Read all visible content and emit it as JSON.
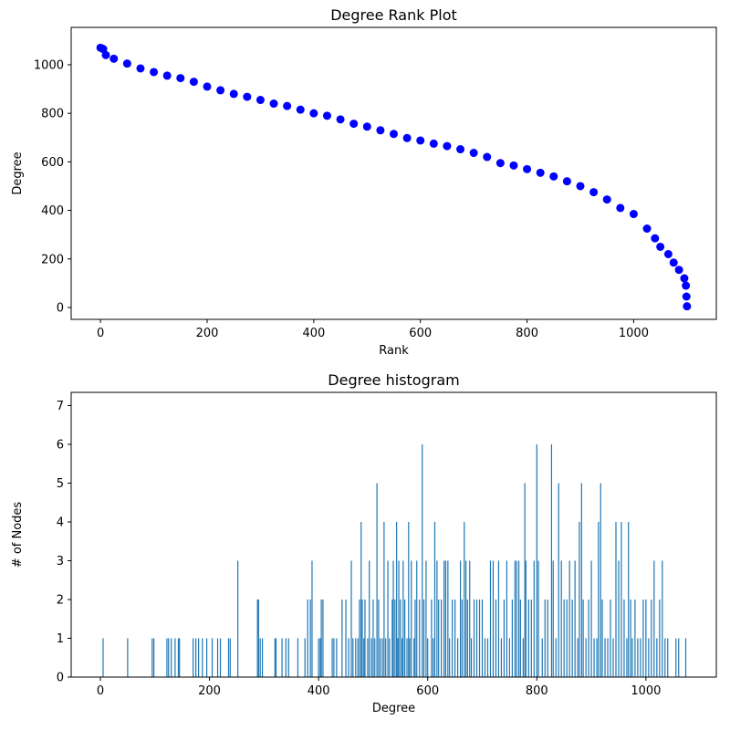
{
  "chart_data": [
    {
      "type": "scatter",
      "title": "Degree Rank Plot",
      "x_label": "Rank",
      "y_label": "Degree",
      "color": "#0000ff",
      "x": [
        0,
        5,
        10,
        25,
        50,
        75,
        100,
        125,
        150,
        175,
        200,
        225,
        250,
        275,
        300,
        325,
        350,
        375,
        400,
        425,
        450,
        475,
        500,
        525,
        550,
        575,
        600,
        625,
        650,
        675,
        700,
        725,
        750,
        775,
        800,
        825,
        850,
        875,
        900,
        925,
        950,
        975,
        1000,
        1025,
        1040,
        1050,
        1065,
        1075,
        1085,
        1095,
        1098,
        1099,
        1100
      ],
      "values": [
        1070,
        1065,
        1040,
        1025,
        1005,
        985,
        970,
        955,
        945,
        930,
        910,
        895,
        880,
        868,
        855,
        840,
        830,
        815,
        800,
        790,
        775,
        757,
        745,
        730,
        715,
        698,
        688,
        675,
        665,
        652,
        637,
        620,
        595,
        585,
        570,
        555,
        540,
        520,
        500,
        475,
        445,
        410,
        385,
        325,
        285,
        250,
        220,
        185,
        155,
        120,
        90,
        45,
        5
      ],
      "xlim": [
        -55,
        1155
      ],
      "xticks": [
        0,
        200,
        400,
        600,
        800,
        1000
      ],
      "ylim": [
        -49,
        1154
      ],
      "yticks": [
        0,
        200,
        400,
        600,
        800,
        1000
      ]
    },
    {
      "type": "bar",
      "title": "Degree histogram",
      "x_label": "Degree",
      "y_label": "# of Nodes",
      "color": "#1f77b4",
      "x": [
        5,
        50,
        95,
        98,
        122,
        125,
        130,
        137,
        143,
        145,
        170,
        175,
        180,
        187,
        195,
        205,
        215,
        220,
        235,
        238,
        252,
        288,
        290,
        293,
        297,
        320,
        322,
        333,
        340,
        345,
        362,
        375,
        380,
        385,
        388,
        400,
        403,
        405,
        408,
        425,
        428,
        433,
        443,
        450,
        455,
        460,
        463,
        468,
        472,
        475,
        478,
        480,
        483,
        485,
        490,
        493,
        497,
        500,
        503,
        507,
        510,
        513,
        517,
        520,
        523,
        527,
        530,
        535,
        537,
        540,
        543,
        545,
        547,
        550,
        553,
        555,
        558,
        562,
        565,
        567,
        570,
        575,
        577,
        580,
        585,
        590,
        593,
        597,
        600,
        607,
        610,
        613,
        617,
        620,
        625,
        630,
        633,
        637,
        640,
        645,
        650,
        655,
        660,
        663,
        667,
        670,
        673,
        677,
        680,
        685,
        690,
        695,
        700,
        705,
        710,
        715,
        720,
        725,
        730,
        735,
        740,
        745,
        750,
        755,
        760,
        763,
        767,
        770,
        775,
        778,
        780,
        785,
        790,
        795,
        800,
        803,
        810,
        815,
        820,
        827,
        830,
        835,
        840,
        845,
        850,
        855,
        860,
        865,
        870,
        875,
        878,
        882,
        885,
        890,
        895,
        900,
        905,
        910,
        913,
        917,
        920,
        925,
        930,
        935,
        940,
        945,
        950,
        955,
        960,
        965,
        968,
        972,
        975,
        980,
        985,
        990,
        995,
        1000,
        1005,
        1010,
        1015,
        1020,
        1025,
        1030,
        1035,
        1040,
        1055,
        1060,
        1073
      ],
      "values": [
        1,
        1,
        1,
        1,
        1,
        1,
        1,
        1,
        1,
        1,
        1,
        1,
        1,
        1,
        1,
        1,
        1,
        1,
        1,
        1,
        3,
        2,
        2,
        1,
        1,
        1,
        1,
        1,
        1,
        1,
        1,
        1,
        2,
        2,
        3,
        1,
        1,
        2,
        2,
        1,
        1,
        1,
        2,
        2,
        1,
        3,
        1,
        1,
        1,
        2,
        4,
        2,
        1,
        2,
        1,
        3,
        1,
        2,
        1,
        5,
        2,
        1,
        1,
        4,
        1,
        3,
        1,
        2,
        3,
        2,
        4,
        1,
        3,
        2,
        1,
        3,
        2,
        1,
        4,
        1,
        3,
        1,
        2,
        3,
        2,
        6,
        2,
        3,
        1,
        2,
        1,
        4,
        3,
        2,
        2,
        3,
        3,
        3,
        1,
        2,
        2,
        1,
        3,
        2,
        4,
        3,
        2,
        3,
        1,
        2,
        2,
        2,
        2,
        1,
        1,
        3,
        3,
        2,
        3,
        1,
        2,
        3,
        1,
        2,
        3,
        3,
        3,
        2,
        1,
        5,
        3,
        2,
        2,
        3,
        6,
        3,
        1,
        2,
        2,
        6,
        3,
        1,
        5,
        3,
        2,
        2,
        3,
        2,
        3,
        1,
        4,
        5,
        2,
        1,
        2,
        3,
        1,
        1,
        4,
        5,
        2,
        1,
        1,
        2,
        1,
        4,
        3,
        4,
        2,
        1,
        4,
        2,
        1,
        2,
        1,
        1,
        2,
        2,
        1,
        2,
        3,
        1,
        2,
        3,
        1,
        1,
        1,
        1,
        1
      ],
      "xlim": [
        -53.5,
        1129
      ],
      "xticks": [
        0,
        200,
        400,
        600,
        800,
        1000
      ],
      "ylim": [
        0,
        7.34
      ],
      "yticks": [
        0,
        1,
        2,
        3,
        4,
        5,
        6,
        7
      ]
    }
  ]
}
